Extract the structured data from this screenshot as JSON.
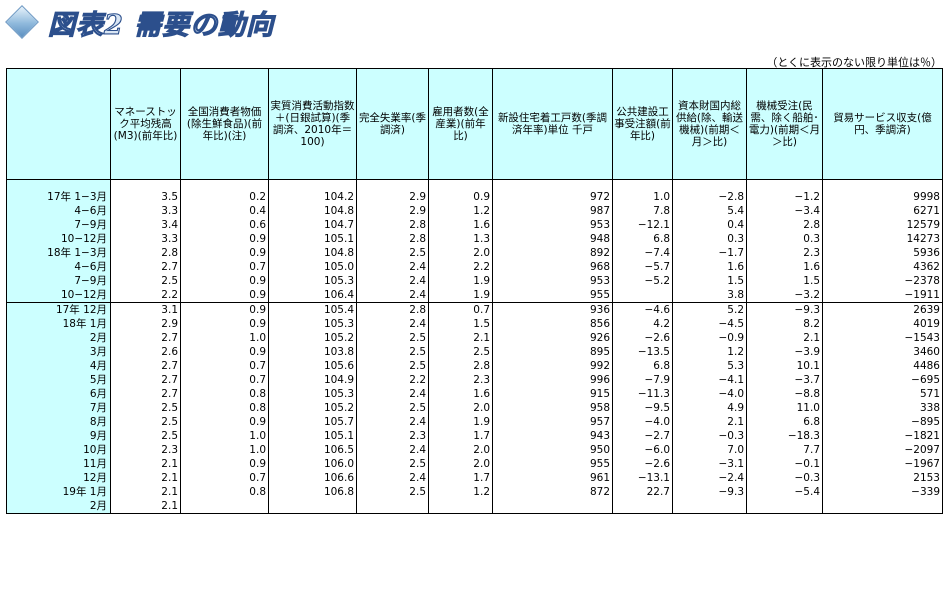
{
  "title": "図表2 需要の動向",
  "unit_note": "（とくに表示のない限り単位は％）",
  "colors": {
    "header_bg": "#ccffff",
    "title_fill": "#d9e6f4",
    "title_outline": "#2c4f8c"
  },
  "headers": [
    "マネーストック平均残高(M3)(前年比)",
    "全国消費者物価(除生鮮食品)(前年比)(注)",
    "実質消費活動指数＋(日銀試算)(季調済、2010年＝100)",
    "完全失業率(季調済)",
    "雇用者数(全産業)(前年比)",
    "新設住宅着工戸数(季調済年率)単位 千戸",
    "公共建設工事受注額(前年比)",
    "資本財国内総供給(除、輸送機械)(前期＜月＞比)",
    "機械受注(民需、除く船舶･電力)(前期＜月＞比)",
    "貿易サービス収支(億円、季調済)"
  ],
  "quarterly": [
    {
      "label": "17年 1−3月",
      "v": [
        "3.5",
        "0.2",
        "104.2",
        "2.9",
        "0.9",
        "972",
        "1.0",
        "−2.8",
        "−1.2",
        "9998"
      ]
    },
    {
      "label": "4−6月",
      "v": [
        "3.3",
        "0.4",
        "104.8",
        "2.9",
        "1.2",
        "987",
        "7.8",
        "5.4",
        "−3.4",
        "6271"
      ]
    },
    {
      "label": "7−9月",
      "v": [
        "3.4",
        "0.6",
        "104.7",
        "2.8",
        "1.6",
        "953",
        "−12.1",
        "0.4",
        "2.8",
        "12579"
      ]
    },
    {
      "label": "10−12月",
      "v": [
        "3.3",
        "0.9",
        "105.1",
        "2.8",
        "1.3",
        "948",
        "6.8",
        "0.3",
        "0.3",
        "14273"
      ]
    },
    {
      "label": "18年 1−3月",
      "v": [
        "2.8",
        "0.9",
        "104.8",
        "2.5",
        "2.0",
        "892",
        "−7.4",
        "−1.7",
        "2.3",
        "5936"
      ]
    },
    {
      "label": "4−6月",
      "v": [
        "2.7",
        "0.7",
        "105.0",
        "2.4",
        "2.2",
        "968",
        "−5.7",
        "1.6",
        "1.6",
        "4362"
      ]
    },
    {
      "label": "7−9月",
      "v": [
        "2.5",
        "0.9",
        "105.3",
        "2.4",
        "1.9",
        "953",
        "−5.2",
        "1.5",
        "1.5",
        "−2378"
      ]
    },
    {
      "label": "10−12月",
      "v": [
        "2.2",
        "0.9",
        "106.4",
        "2.4",
        "1.9",
        "955",
        "",
        "3.8",
        "−3.2",
        "−1911"
      ]
    }
  ],
  "monthly": [
    {
      "label": "17年 12月",
      "v": [
        "3.1",
        "0.9",
        "105.4",
        "2.8",
        "0.7",
        "936",
        "−4.6",
        "5.2",
        "−9.3",
        "2639"
      ]
    },
    {
      "label": "18年 1月",
      "v": [
        "2.9",
        "0.9",
        "105.3",
        "2.4",
        "1.5",
        "856",
        "4.2",
        "−4.5",
        "8.2",
        "4019"
      ]
    },
    {
      "label": "2月",
      "v": [
        "2.7",
        "1.0",
        "105.2",
        "2.5",
        "2.1",
        "926",
        "−2.6",
        "−0.9",
        "2.1",
        "−1543"
      ]
    },
    {
      "label": "3月",
      "v": [
        "2.6",
        "0.9",
        "103.8",
        "2.5",
        "2.5",
        "895",
        "−13.5",
        "1.2",
        "−3.9",
        "3460"
      ]
    },
    {
      "label": "4月",
      "v": [
        "2.7",
        "0.7",
        "105.6",
        "2.5",
        "2.8",
        "992",
        "6.8",
        "5.3",
        "10.1",
        "4486"
      ]
    },
    {
      "label": "5月",
      "v": [
        "2.7",
        "0.7",
        "104.9",
        "2.2",
        "2.3",
        "996",
        "−7.9",
        "−4.1",
        "−3.7",
        "−695"
      ]
    },
    {
      "label": "6月",
      "v": [
        "2.7",
        "0.8",
        "105.3",
        "2.4",
        "1.6",
        "915",
        "−11.3",
        "−4.0",
        "−8.8",
        "571"
      ]
    },
    {
      "label": "7月",
      "v": [
        "2.5",
        "0.8",
        "105.2",
        "2.5",
        "2.0",
        "958",
        "−9.5",
        "4.9",
        "11.0",
        "338"
      ]
    },
    {
      "label": "8月",
      "v": [
        "2.5",
        "0.9",
        "105.7",
        "2.4",
        "1.9",
        "957",
        "−4.0",
        "2.1",
        "6.8",
        "−895"
      ]
    },
    {
      "label": "9月",
      "v": [
        "2.5",
        "1.0",
        "105.1",
        "2.3",
        "1.7",
        "943",
        "−2.7",
        "−0.3",
        "−18.3",
        "−1821"
      ]
    },
    {
      "label": "10月",
      "v": [
        "2.3",
        "1.0",
        "106.5",
        "2.4",
        "2.0",
        "950",
        "−6.0",
        "7.0",
        "7.7",
        "−2097"
      ]
    },
    {
      "label": "11月",
      "v": [
        "2.1",
        "0.9",
        "106.0",
        "2.5",
        "2.0",
        "955",
        "−2.6",
        "−3.1",
        "−0.1",
        "−1967"
      ]
    },
    {
      "label": "12月",
      "v": [
        "2.1",
        "0.7",
        "106.6",
        "2.4",
        "1.7",
        "961",
        "−13.1",
        "−2.4",
        "−0.3",
        "2153"
      ]
    },
    {
      "label": "19年 1月",
      "v": [
        "2.1",
        "0.8",
        "106.8",
        "2.5",
        "1.2",
        "872",
        "22.7",
        "−9.3",
        "−5.4",
        "−339"
      ]
    },
    {
      "label": "2月",
      "v": [
        "2.1",
        "",
        "",
        "",
        "",
        "",
        "",
        "",
        "",
        ""
      ]
    }
  ]
}
